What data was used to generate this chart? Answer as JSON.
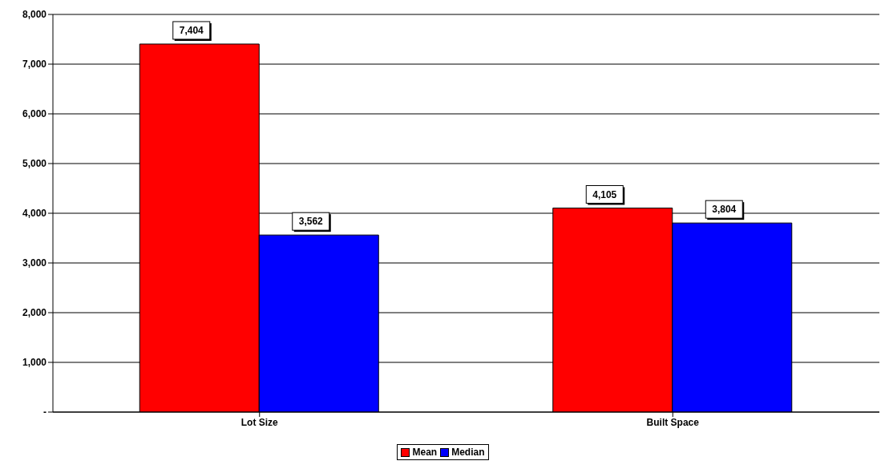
{
  "chart_data": {
    "type": "bar",
    "categories": [
      "Lot Size",
      "Built Space"
    ],
    "series": [
      {
        "name": "Mean",
        "color": "#ff0000",
        "values": [
          7404,
          4105
        ],
        "value_labels": [
          "7,404",
          "4,105"
        ]
      },
      {
        "name": "Median",
        "color": "#0000ff",
        "values": [
          3562,
          3804
        ],
        "value_labels": [
          "3,562",
          "3,804"
        ]
      }
    ],
    "ylim": [
      0,
      8000
    ],
    "yticks": [
      {
        "value": 0,
        "label": "-"
      },
      {
        "value": 1000,
        "label": "1,000"
      },
      {
        "value": 2000,
        "label": "2,000"
      },
      {
        "value": 3000,
        "label": "3,000"
      },
      {
        "value": 4000,
        "label": "4,000"
      },
      {
        "value": 5000,
        "label": "5,000"
      },
      {
        "value": 6000,
        "label": "6,000"
      },
      {
        "value": 7000,
        "label": "7,000"
      },
      {
        "value": 8000,
        "label": "8,000"
      }
    ],
    "grid": "y",
    "legend": "bottom"
  }
}
